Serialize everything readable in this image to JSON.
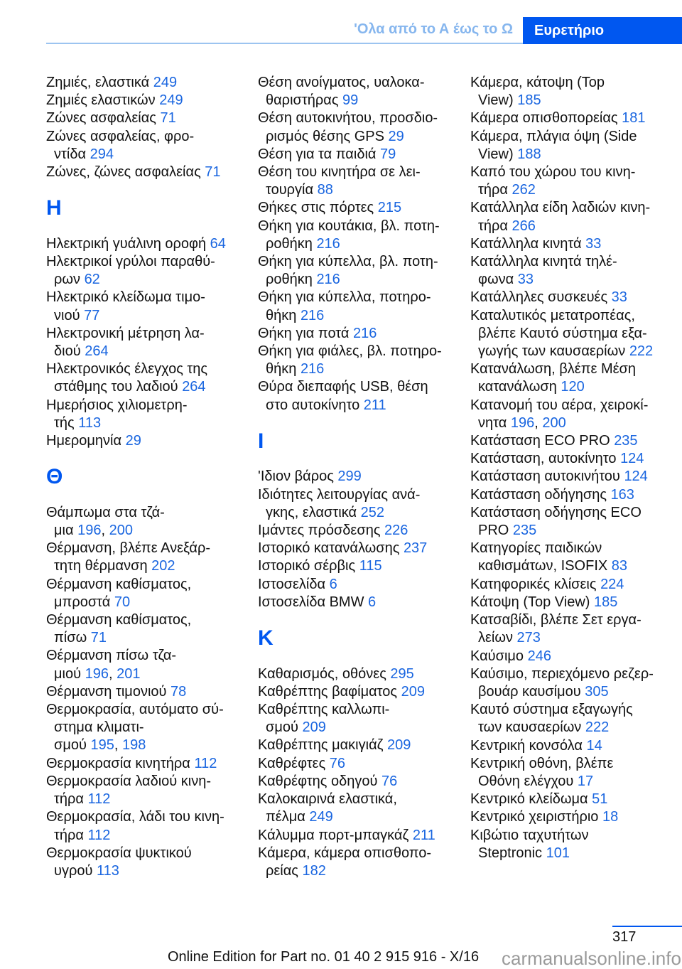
{
  "header": {
    "section": "'Ολα από το Α έως το Ω",
    "tab": "Ευρετήριο"
  },
  "page_separator": ", ",
  "columns": [
    [
      {
        "l": [
          "Ζημιές, ελαστικά"
        ],
        "p": [
          "249"
        ]
      },
      {
        "l": [
          "Ζημιές ελαστικών"
        ],
        "p": [
          "249"
        ]
      },
      {
        "l": [
          "Ζώνες ασφαλείας"
        ],
        "p": [
          "71"
        ]
      },
      {
        "l": [
          "Ζώνες ασφαλείας, φρο-",
          "ντίδα"
        ],
        "p": [
          "294"
        ]
      },
      {
        "l": [
          "Ζώνες, ζώνες ασφαλείας"
        ],
        "p": [
          "71"
        ]
      },
      {
        "h": "H"
      },
      {
        "l": [
          "Ηλεκτρική γυάλινη οροφή"
        ],
        "p": [
          "64"
        ]
      },
      {
        "l": [
          "Ηλεκτρικοί γρύλοι παραθύ-",
          "ρων"
        ],
        "p": [
          "62"
        ]
      },
      {
        "l": [
          "Ηλεκτρικό κλείδωμα τιμο-",
          "νιού"
        ],
        "p": [
          "77"
        ]
      },
      {
        "l": [
          "Ηλεκτρονική μέτρηση λα-",
          "διού"
        ],
        "p": [
          "264"
        ]
      },
      {
        "l": [
          "Ηλεκτρονικός έλεγχος της",
          "στάθμης του λαδιού"
        ],
        "p": [
          "264"
        ]
      },
      {
        "l": [
          "Ημερήσιος χιλιομετρη-",
          "τής"
        ],
        "p": [
          "113"
        ]
      },
      {
        "l": [
          "Ημερομηνία"
        ],
        "p": [
          "29"
        ]
      },
      {
        "h": "Θ"
      },
      {
        "l": [
          "Θάμπωμα στα τζά-",
          "μια"
        ],
        "p": [
          "196",
          "200"
        ]
      },
      {
        "l": [
          "Θέρμανση, βλέπε Ανεξάρ-",
          "τητη θέρμανση"
        ],
        "p": [
          "202"
        ]
      },
      {
        "l": [
          "Θέρμανση καθίσματος,",
          "μπροστά"
        ],
        "p": [
          "70"
        ]
      },
      {
        "l": [
          "Θέρμανση καθίσματος,",
          "πίσω"
        ],
        "p": [
          "71"
        ]
      },
      {
        "l": [
          "Θέρμανση πίσω τζα-",
          "μιού"
        ],
        "p": [
          "196",
          "201"
        ]
      },
      {
        "l": [
          "Θέρμανση τιμονιού"
        ],
        "p": [
          "78"
        ]
      },
      {
        "l": [
          "Θερμοκρασία, αυτόματο σύ-",
          "στημα κλιματι-",
          "σμού"
        ],
        "p": [
          "195",
          "198"
        ]
      },
      {
        "l": [
          "Θερμοκρασία κινητήρα"
        ],
        "p": [
          "112"
        ]
      },
      {
        "l": [
          "Θερμοκρασία λαδιού κινη-",
          "τήρα"
        ],
        "p": [
          "112"
        ]
      },
      {
        "l": [
          "Θερμοκρασία, λάδι του κινη-",
          "τήρα"
        ],
        "p": [
          "112"
        ]
      },
      {
        "l": [
          "Θερμοκρασία ψυκτικού",
          "υγρού"
        ],
        "p": [
          "113"
        ]
      }
    ],
    [
      {
        "l": [
          "Θέση ανοίγματος, υαλοκα-",
          "θαριστήρας"
        ],
        "p": [
          "99"
        ]
      },
      {
        "l": [
          "Θέση αυτοκινήτου, προσδιο-",
          "ρισμός θέσης GPS"
        ],
        "p": [
          "29"
        ]
      },
      {
        "l": [
          "Θέση για τα παιδιά"
        ],
        "p": [
          "79"
        ]
      },
      {
        "l": [
          "Θέση του κινητήρα σε λει-",
          "τουργία"
        ],
        "p": [
          "88"
        ]
      },
      {
        "l": [
          "Θήκες στις πόρτες"
        ],
        "p": [
          "215"
        ]
      },
      {
        "l": [
          "Θήκη για κουτάκια, βλ. ποτη-",
          "ροθήκη"
        ],
        "p": [
          "216"
        ]
      },
      {
        "l": [
          "Θήκη για κύπελλα, βλ. ποτη-",
          "ροθήκη"
        ],
        "p": [
          "216"
        ]
      },
      {
        "l": [
          "Θήκη για κύπελλα, ποτηρο-",
          "θήκη"
        ],
        "p": [
          "216"
        ]
      },
      {
        "l": [
          "Θήκη για ποτά"
        ],
        "p": [
          "216"
        ]
      },
      {
        "l": [
          "Θήκη για φιάλες, βλ. ποτηρο-",
          "θήκη"
        ],
        "p": [
          "216"
        ]
      },
      {
        "l": [
          "Θύρα διεπαφής USB, θέση",
          "στο αυτοκίνητο"
        ],
        "p": [
          "211"
        ]
      },
      {
        "h": "I"
      },
      {
        "l": [
          "'Ιδιον βάρος"
        ],
        "p": [
          "299"
        ]
      },
      {
        "l": [
          "Ιδιότητες λειτουργίας ανά-",
          "γκης, ελαστικά"
        ],
        "p": [
          "252"
        ]
      },
      {
        "l": [
          "Ιμάντες πρόσδεσης"
        ],
        "p": [
          "226"
        ]
      },
      {
        "l": [
          "Ιστορικό κατανάλωσης"
        ],
        "p": [
          "237"
        ]
      },
      {
        "l": [
          "Ιστορικό σέρβις"
        ],
        "p": [
          "115"
        ]
      },
      {
        "l": [
          "Ιστοσελίδα"
        ],
        "p": [
          "6"
        ]
      },
      {
        "l": [
          "Ιστοσελίδα BMW"
        ],
        "p": [
          "6"
        ]
      },
      {
        "h": "K"
      },
      {
        "l": [
          "Καθαρισμός, οθόνες"
        ],
        "p": [
          "295"
        ]
      },
      {
        "l": [
          "Καθρέπτης βαφίματος"
        ],
        "p": [
          "209"
        ]
      },
      {
        "l": [
          "Καθρέπτης καλλωπι-",
          "σμού"
        ],
        "p": [
          "209"
        ]
      },
      {
        "l": [
          "Καθρέπτης μακιγιάζ"
        ],
        "p": [
          "209"
        ]
      },
      {
        "l": [
          "Καθρέφτες"
        ],
        "p": [
          "76"
        ]
      },
      {
        "l": [
          "Καθρέφτης οδηγού"
        ],
        "p": [
          "76"
        ]
      },
      {
        "l": [
          "Καλοκαιρινά ελαστικά,",
          "πέλμα"
        ],
        "p": [
          "249"
        ]
      },
      {
        "l": [
          "Κάλυμμα πορτ-μπαγκάζ"
        ],
        "p": [
          "211"
        ]
      },
      {
        "l": [
          "Κάμερα, κάμερα οπισθοπο-",
          "ρείας"
        ],
        "p": [
          "182"
        ]
      }
    ],
    [
      {
        "l": [
          "Κάμερα, κάτοψη (Top",
          "View)"
        ],
        "p": [
          "185"
        ]
      },
      {
        "l": [
          "Κάμερα οπισθοπορείας"
        ],
        "p": [
          "181"
        ]
      },
      {
        "l": [
          "Κάμερα, πλάγια όψη (Side",
          "View)"
        ],
        "p": [
          "188"
        ]
      },
      {
        "l": [
          "Καπό του χώρου του κινη-",
          "τήρα"
        ],
        "p": [
          "262"
        ]
      },
      {
        "l": [
          "Κατάλληλα είδη λαδιών κινη-",
          "τήρα"
        ],
        "p": [
          "266"
        ]
      },
      {
        "l": [
          "Κατάλληλα κινητά"
        ],
        "p": [
          "33"
        ]
      },
      {
        "l": [
          "Κατάλληλα κινητά τηλέ-",
          "φωνα"
        ],
        "p": [
          "33"
        ]
      },
      {
        "l": [
          "Κατάλληλες συσκευές"
        ],
        "p": [
          "33"
        ]
      },
      {
        "l": [
          "Καταλυτικός μετατροπέας,",
          "βλέπε Καυτό σύστημα εξα-",
          "γωγής των καυσαερίων"
        ],
        "p": [
          "222"
        ]
      },
      {
        "l": [
          "Κατανάλωση, βλέπε Μέση",
          "κατανάλωση"
        ],
        "p": [
          "120"
        ]
      },
      {
        "l": [
          "Κατανομή του αέρα, χειροκί-",
          "νητα"
        ],
        "p": [
          "196",
          "200"
        ]
      },
      {
        "l": [
          "Κατάσταση ECO PRO"
        ],
        "p": [
          "235"
        ]
      },
      {
        "l": [
          "Κατάσταση, αυτοκίνητο"
        ],
        "p": [
          "124"
        ]
      },
      {
        "l": [
          "Κατάσταση αυτοκινήτου"
        ],
        "p": [
          "124"
        ]
      },
      {
        "l": [
          "Κατάσταση οδήγησης"
        ],
        "p": [
          "163"
        ]
      },
      {
        "l": [
          "Κατάσταση οδήγησης ECO",
          "PRO"
        ],
        "p": [
          "235"
        ]
      },
      {
        "l": [
          "Κατηγορίες παιδικών",
          "καθισμάτων, ISOFIX"
        ],
        "p": [
          "83"
        ]
      },
      {
        "l": [
          "Κατηφορικές κλίσεις"
        ],
        "p": [
          "224"
        ]
      },
      {
        "l": [
          "Κάτοψη (Top View)"
        ],
        "p": [
          "185"
        ]
      },
      {
        "l": [
          "Κατσαβίδι, βλέπε Σετ εργα-",
          "λείων"
        ],
        "p": [
          "273"
        ]
      },
      {
        "l": [
          "Καύσιμο"
        ],
        "p": [
          "246"
        ]
      },
      {
        "l": [
          "Καύσιμο, περιεχόμενο ρεζερ-",
          "βουάρ καυσίμου"
        ],
        "p": [
          "305"
        ]
      },
      {
        "l": [
          "Καυτό σύστημα εξαγωγής",
          "των καυσαερίων"
        ],
        "p": [
          "222"
        ]
      },
      {
        "l": [
          "Κεντρική κονσόλα"
        ],
        "p": [
          "14"
        ]
      },
      {
        "l": [
          "Κεντρική οθόνη, βλέπε",
          "Οθόνη ελέγχου"
        ],
        "p": [
          "17"
        ]
      },
      {
        "l": [
          "Κεντρικό κλείδωμα"
        ],
        "p": [
          "51"
        ]
      },
      {
        "l": [
          "Κεντρικό χειριστήριο"
        ],
        "p": [
          "18"
        ]
      },
      {
        "l": [
          "Κιβώτιο ταχυτήτων",
          "Steptronic"
        ],
        "p": [
          "101"
        ]
      }
    ]
  ],
  "footer": {
    "page_number": "317",
    "edition": "Online Edition for Part no. 01 40 2 915 916 - X/16",
    "watermark": "carmanualsonline.info"
  },
  "colors": {
    "accent": "#0057f0",
    "section_light": "#86b6ee",
    "page_link": "#1a66e0"
  }
}
